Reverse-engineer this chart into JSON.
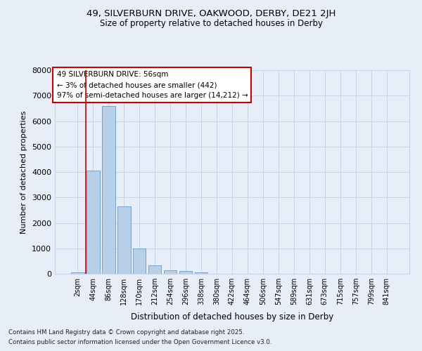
{
  "title_line1": "49, SILVERBURN DRIVE, OAKWOOD, DERBY, DE21 2JH",
  "title_line2": "Size of property relative to detached houses in Derby",
  "xlabel": "Distribution of detached houses by size in Derby",
  "ylabel": "Number of detached properties",
  "bar_labels": [
    "2sqm",
    "44sqm",
    "86sqm",
    "128sqm",
    "170sqm",
    "212sqm",
    "254sqm",
    "296sqm",
    "338sqm",
    "380sqm",
    "422sqm",
    "464sqm",
    "506sqm",
    "547sqm",
    "589sqm",
    "631sqm",
    "673sqm",
    "715sqm",
    "757sqm",
    "799sqm",
    "841sqm"
  ],
  "bar_values": [
    60,
    4050,
    6600,
    2650,
    1000,
    340,
    130,
    100,
    60,
    0,
    0,
    0,
    0,
    0,
    0,
    0,
    0,
    0,
    0,
    0,
    0
  ],
  "bar_color": "#b8cfe8",
  "bar_edge_color": "#6699cc",
  "vline_color": "#cc0000",
  "vline_position": 0.55,
  "ylim": [
    0,
    8000
  ],
  "yticks": [
    0,
    1000,
    2000,
    3000,
    4000,
    5000,
    6000,
    7000,
    8000
  ],
  "grid_color": "#c8d4e8",
  "background_color": "#e8eef8",
  "annotation_title": "49 SILVERBURN DRIVE: 56sqm",
  "annotation_line2": "← 3% of detached houses are smaller (442)",
  "annotation_line3": "97% of semi-detached houses are larger (14,212) →",
  "annotation_box_color": "#ffffff",
  "annotation_border_color": "#cc0000",
  "footnote1": "Contains HM Land Registry data © Crown copyright and database right 2025.",
  "footnote2": "Contains public sector information licensed under the Open Government Licence v3.0.",
  "fig_width": 6.0,
  "fig_height": 5.0,
  "dpi": 100
}
